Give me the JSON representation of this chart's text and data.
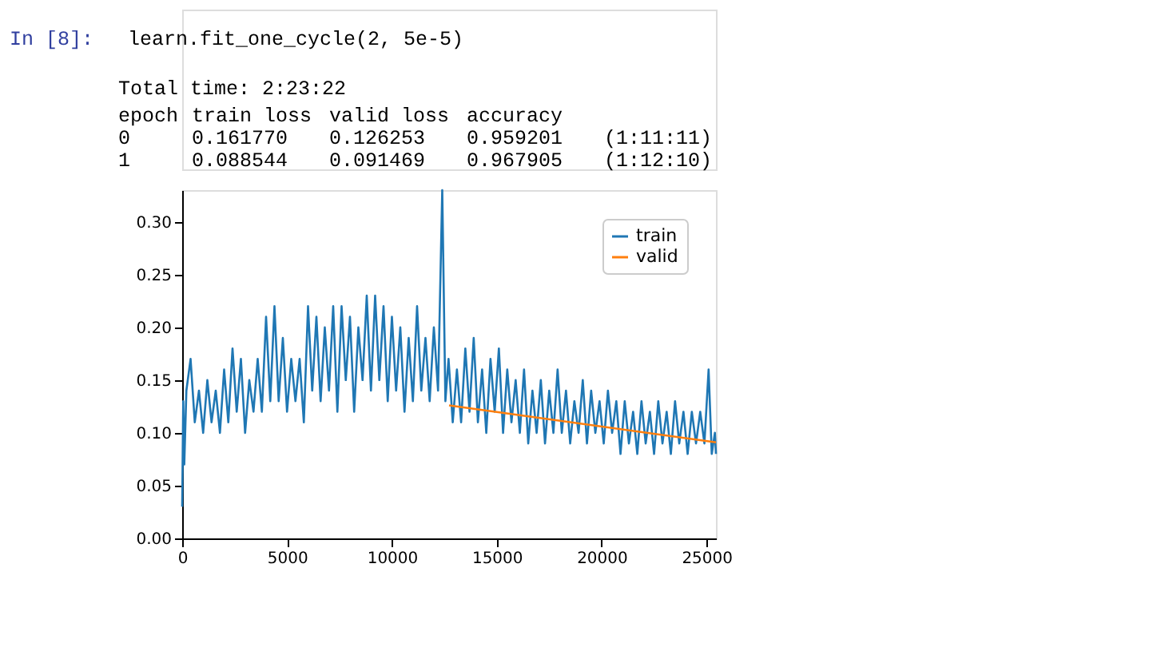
{
  "chart_data": {
    "type": "line",
    "annotations": [
      "In [8]:",
      "learn.fit_one_cycle(2, 5e-5)",
      "Total time: 2:23:22",
      "epoch",
      "train loss",
      "valid loss",
      "accuracy",
      "0",
      "0.161770",
      "0.126253",
      "0.959201",
      "(1:11:11)",
      "1",
      "0.088544",
      "0.091469",
      "0.967905",
      "(1:12:10)"
    ],
    "xlim": [
      0,
      25450
    ],
    "xticks": [
      0,
      5000,
      10000,
      15000,
      20000,
      25000
    ],
    "ylim": [
      0,
      0.33
    ],
    "yticks": [
      {
        "value": 0,
        "label": "0.00"
      },
      0.05,
      {
        "value": 0.1,
        "label": "0.10"
      },
      0.15,
      {
        "value": 0.2,
        "label": "0.20"
      },
      0.25,
      {
        "value": 0.3,
        "label": "0.30"
      }
    ],
    "grid": false,
    "legend": "top right",
    "marker": "none",
    "line_style": "solid",
    "series": [
      {
        "name": "train",
        "color": "#1f77b4",
        "x": [
          0,
          50,
          100,
          200,
          400,
          600,
          800,
          1000,
          1200,
          1400,
          1600,
          1800,
          2000,
          2200,
          2400,
          2600,
          2800,
          3000,
          3200,
          3400,
          3600,
          3800,
          4000,
          4200,
          4400,
          4600,
          4800,
          5000,
          5200,
          5400,
          5600,
          5800,
          6000,
          6200,
          6400,
          6600,
          6800,
          7000,
          7200,
          7400,
          7600,
          7800,
          8000,
          8200,
          8400,
          8600,
          8800,
          9000,
          9200,
          9400,
          9600,
          9800,
          10000,
          10200,
          10400,
          10600,
          10800,
          11000,
          11200,
          11400,
          11600,
          11800,
          12000,
          12200,
          12400,
          12550,
          12700,
          12900,
          13100,
          13300,
          13500,
          13700,
          13900,
          14100,
          14300,
          14500,
          14700,
          14900,
          15100,
          15300,
          15500,
          15700,
          15900,
          16100,
          16300,
          16500,
          16700,
          16900,
          17100,
          17300,
          17500,
          17700,
          17900,
          18100,
          18300,
          18500,
          18700,
          18900,
          19100,
          19300,
          19500,
          19700,
          19900,
          20100,
          20300,
          20500,
          20700,
          20900,
          21100,
          21300,
          21500,
          21700,
          21900,
          22100,
          22300,
          22500,
          22700,
          22900,
          23100,
          23300,
          23500,
          23700,
          23900,
          24100,
          24300,
          24500,
          24700,
          24900,
          25100,
          25250,
          25400,
          25450
        ],
        "values": [
          0.03,
          0.13,
          0.07,
          0.14,
          0.17,
          0.11,
          0.14,
          0.1,
          0.15,
          0.11,
          0.14,
          0.1,
          0.16,
          0.11,
          0.18,
          0.12,
          0.17,
          0.1,
          0.15,
          0.12,
          0.17,
          0.12,
          0.21,
          0.13,
          0.22,
          0.13,
          0.19,
          0.12,
          0.17,
          0.13,
          0.17,
          0.11,
          0.22,
          0.14,
          0.21,
          0.13,
          0.2,
          0.14,
          0.22,
          0.12,
          0.22,
          0.15,
          0.21,
          0.12,
          0.2,
          0.15,
          0.23,
          0.14,
          0.23,
          0.15,
          0.22,
          0.13,
          0.21,
          0.14,
          0.2,
          0.12,
          0.19,
          0.13,
          0.22,
          0.14,
          0.19,
          0.13,
          0.2,
          0.14,
          0.33,
          0.13,
          0.17,
          0.11,
          0.16,
          0.11,
          0.18,
          0.12,
          0.19,
          0.11,
          0.16,
          0.1,
          0.17,
          0.12,
          0.18,
          0.1,
          0.16,
          0.11,
          0.15,
          0.1,
          0.16,
          0.09,
          0.14,
          0.1,
          0.15,
          0.09,
          0.14,
          0.1,
          0.16,
          0.1,
          0.14,
          0.09,
          0.13,
          0.1,
          0.15,
          0.09,
          0.14,
          0.1,
          0.13,
          0.09,
          0.14,
          0.1,
          0.13,
          0.08,
          0.13,
          0.09,
          0.12,
          0.08,
          0.13,
          0.09,
          0.12,
          0.08,
          0.13,
          0.09,
          0.12,
          0.08,
          0.13,
          0.09,
          0.12,
          0.08,
          0.12,
          0.09,
          0.12,
          0.09,
          0.16,
          0.08,
          0.1,
          0.08
        ]
      },
      {
        "name": "valid",
        "color": "#ff7f0e",
        "x": [
          12725,
          25450
        ],
        "values": [
          0.126,
          0.091
        ]
      }
    ]
  }
}
